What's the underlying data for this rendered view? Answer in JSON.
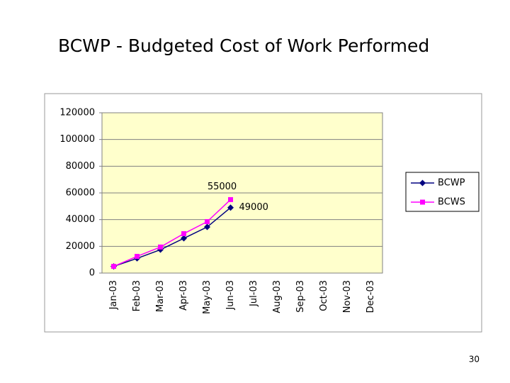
{
  "title": "BCWP - Budgeted Cost of Work Performed",
  "page_number": "30",
  "chart_data": {
    "type": "line",
    "categories": [
      "Jan-03",
      "Feb-03",
      "Mar-03",
      "Apr-03",
      "May-03",
      "Jun-03",
      "Jul-03",
      "Aug-03",
      "Sep-03",
      "Oct-03",
      "Nov-03",
      "Dec-03"
    ],
    "series": [
      {
        "name": "BCWP",
        "color": "#000080",
        "marker": "diamond",
        "values": [
          5000,
          11000,
          17500,
          26000,
          34500,
          49000,
          null,
          null,
          null,
          null,
          null,
          null
        ]
      },
      {
        "name": "BCWS",
        "color": "#ff00ff",
        "marker": "square",
        "values": [
          5000,
          12500,
          19500,
          29500,
          38500,
          55000,
          null,
          null,
          null,
          null,
          null,
          null
        ]
      }
    ],
    "ylim": [
      0,
      120000
    ],
    "yticks": [
      0,
      20000,
      40000,
      60000,
      80000,
      100000,
      120000
    ],
    "grid": true,
    "legend": "right",
    "plot_background": "#ffffcc"
  }
}
